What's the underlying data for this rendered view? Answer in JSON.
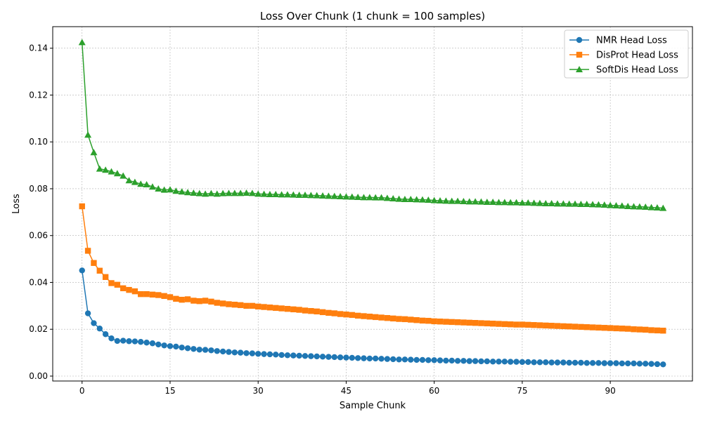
{
  "chart_data": {
    "type": "line",
    "title": "Loss Over Chunk (1 chunk = 100 samples)",
    "xlabel": "Sample Chunk",
    "ylabel": "Loss",
    "xlim": [
      -5,
      104
    ],
    "ylim": [
      -0.0021,
      0.1492
    ],
    "x_ticks": [
      0,
      15,
      30,
      45,
      60,
      75,
      90
    ],
    "x_tick_labels": [
      "0",
      "15",
      "30",
      "45",
      "60",
      "75",
      "90"
    ],
    "y_ticks": [
      0.0,
      0.02,
      0.04,
      0.06,
      0.08,
      0.1,
      0.12,
      0.14
    ],
    "y_tick_labels": [
      "0.00",
      "0.02",
      "0.04",
      "0.06",
      "0.08",
      "0.10",
      "0.12",
      "0.14"
    ],
    "grid": true,
    "legend_position": "top-right",
    "x": [
      0,
      1,
      2,
      3,
      4,
      5,
      6,
      7,
      8,
      9,
      10,
      11,
      12,
      13,
      14,
      15,
      16,
      17,
      18,
      19,
      20,
      21,
      22,
      23,
      24,
      25,
      26,
      27,
      28,
      29,
      30,
      31,
      32,
      33,
      34,
      35,
      36,
      37,
      38,
      39,
      40,
      41,
      42,
      43,
      44,
      45,
      46,
      47,
      48,
      49,
      50,
      51,
      52,
      53,
      54,
      55,
      56,
      57,
      58,
      59,
      60,
      61,
      62,
      63,
      64,
      65,
      66,
      67,
      68,
      69,
      70,
      71,
      72,
      73,
      74,
      75,
      76,
      77,
      78,
      79,
      80,
      81,
      82,
      83,
      84,
      85,
      86,
      87,
      88,
      89,
      90,
      91,
      92,
      93,
      94,
      95,
      96,
      97,
      98,
      99
    ],
    "series": [
      {
        "name": "NMR Head Loss",
        "color": "#1f77b4",
        "marker": "circle",
        "values": [
          0.0451,
          0.0268,
          0.0226,
          0.0203,
          0.0179,
          0.0161,
          0.015,
          0.0151,
          0.0149,
          0.0148,
          0.0146,
          0.0143,
          0.014,
          0.0135,
          0.0131,
          0.0128,
          0.0126,
          0.0122,
          0.0119,
          0.0116,
          0.0113,
          0.0112,
          0.011,
          0.0107,
          0.0105,
          0.0103,
          0.0101,
          0.01,
          0.0098,
          0.0097,
          0.0095,
          0.0094,
          0.0093,
          0.0092,
          0.009,
          0.0089,
          0.0088,
          0.0087,
          0.0086,
          0.0085,
          0.0084,
          0.0083,
          0.0082,
          0.0081,
          0.008,
          0.0079,
          0.0078,
          0.0077,
          0.0076,
          0.0075,
          0.0075,
          0.0074,
          0.0073,
          0.0072,
          0.0071,
          0.0071,
          0.007,
          0.0069,
          0.0069,
          0.0068,
          0.0068,
          0.0067,
          0.0066,
          0.0066,
          0.0065,
          0.0065,
          0.0064,
          0.0064,
          0.0063,
          0.0063,
          0.0062,
          0.0062,
          0.0062,
          0.0061,
          0.0061,
          0.006,
          0.006,
          0.0059,
          0.0059,
          0.0059,
          0.0058,
          0.0058,
          0.0058,
          0.0057,
          0.0057,
          0.0057,
          0.0056,
          0.0056,
          0.0056,
          0.0055,
          0.0055,
          0.0055,
          0.0054,
          0.0054,
          0.0054,
          0.0053,
          0.0053,
          0.0052,
          0.0051,
          0.005
        ]
      },
      {
        "name": "DisProt Head Loss",
        "color": "#ff7f0e",
        "marker": "square",
        "values": [
          0.0725,
          0.0535,
          0.0483,
          0.045,
          0.0423,
          0.0397,
          0.039,
          0.0375,
          0.0368,
          0.0362,
          0.035,
          0.035,
          0.0348,
          0.0346,
          0.0342,
          0.0337,
          0.033,
          0.0326,
          0.0328,
          0.0322,
          0.032,
          0.0322,
          0.0318,
          0.0313,
          0.031,
          0.0307,
          0.0305,
          0.0303,
          0.03,
          0.03,
          0.0297,
          0.0295,
          0.0293,
          0.0291,
          0.0289,
          0.0287,
          0.0285,
          0.0283,
          0.028,
          0.0278,
          0.0276,
          0.0273,
          0.027,
          0.0268,
          0.0265,
          0.0263,
          0.0261,
          0.0258,
          0.0256,
          0.0254,
          0.0252,
          0.025,
          0.0248,
          0.0246,
          0.0244,
          0.0243,
          0.0241,
          0.0239,
          0.0237,
          0.0236,
          0.0234,
          0.0233,
          0.0232,
          0.0231,
          0.023,
          0.0229,
          0.0228,
          0.0227,
          0.0226,
          0.0225,
          0.0224,
          0.0223,
          0.0222,
          0.0221,
          0.022,
          0.022,
          0.0219,
          0.0218,
          0.0217,
          0.0216,
          0.0215,
          0.0214,
          0.0213,
          0.0212,
          0.0211,
          0.021,
          0.0209,
          0.0208,
          0.0207,
          0.0206,
          0.0205,
          0.0204,
          0.0203,
          0.0202,
          0.02,
          0.0199,
          0.0198,
          0.0196,
          0.0195,
          0.0194
        ]
      },
      {
        "name": "SoftDis Head Loss",
        "color": "#2ca02c",
        "marker": "triangle",
        "values": [
          0.1425,
          0.103,
          0.0955,
          0.0885,
          0.088,
          0.0873,
          0.0865,
          0.0855,
          0.0835,
          0.0828,
          0.082,
          0.0818,
          0.0808,
          0.08,
          0.0795,
          0.0796,
          0.079,
          0.0787,
          0.0784,
          0.0782,
          0.078,
          0.0778,
          0.078,
          0.0778,
          0.078,
          0.0781,
          0.0781,
          0.0781,
          0.0782,
          0.0781,
          0.0778,
          0.0777,
          0.0776,
          0.0776,
          0.0775,
          0.0775,
          0.0774,
          0.0773,
          0.0773,
          0.0772,
          0.0771,
          0.077,
          0.0769,
          0.0768,
          0.0767,
          0.0766,
          0.0765,
          0.0764,
          0.0763,
          0.0763,
          0.0762,
          0.0762,
          0.076,
          0.0758,
          0.0756,
          0.0755,
          0.0755,
          0.0754,
          0.0753,
          0.0752,
          0.075,
          0.0749,
          0.0748,
          0.0747,
          0.0747,
          0.0746,
          0.0745,
          0.0745,
          0.0744,
          0.0743,
          0.0743,
          0.0742,
          0.0742,
          0.0741,
          0.0741,
          0.074,
          0.074,
          0.0739,
          0.0738,
          0.0737,
          0.0737,
          0.0736,
          0.0736,
          0.0735,
          0.0735,
          0.0734,
          0.0734,
          0.0733,
          0.0732,
          0.0731,
          0.0729,
          0.0728,
          0.0727,
          0.0725,
          0.0724,
          0.0723,
          0.0722,
          0.072,
          0.0719,
          0.0717
        ]
      }
    ]
  }
}
